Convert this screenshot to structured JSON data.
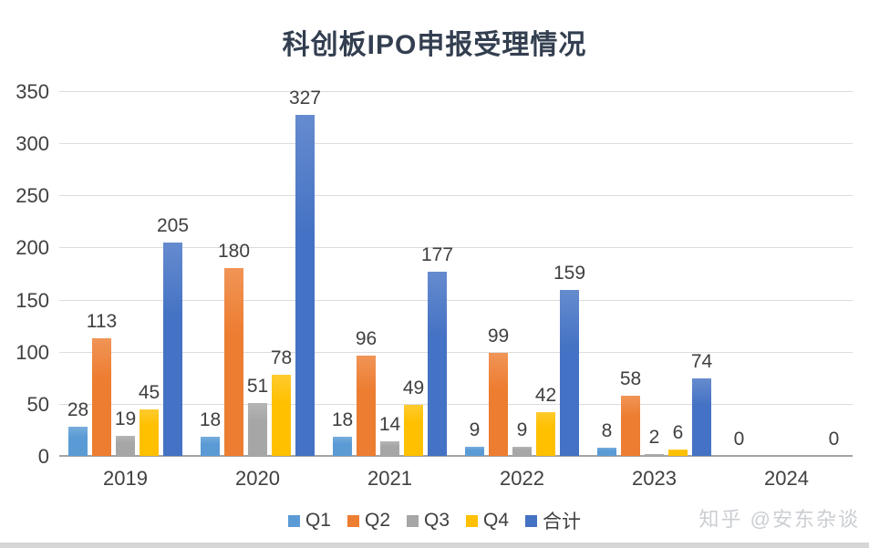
{
  "chart_data": {
    "type": "bar",
    "title": "科创板IPO申报受理情况",
    "categories": [
      "2019",
      "2020",
      "2021",
      "2022",
      "2023",
      "2024"
    ],
    "series": [
      {
        "name": "Q1",
        "color": "#5B9BD5",
        "values": [
          28,
          18,
          18,
          9,
          8,
          0
        ]
      },
      {
        "name": "Q2",
        "color": "#ED7D31",
        "values": [
          113,
          180,
          96,
          99,
          58,
          null
        ]
      },
      {
        "name": "Q3",
        "color": "#A6A6A6",
        "values": [
          19,
          51,
          14,
          9,
          2,
          null
        ]
      },
      {
        "name": "Q4",
        "color": "#FFC000",
        "values": [
          45,
          78,
          49,
          42,
          6,
          null
        ]
      },
      {
        "name": "合计",
        "color": "#4472C4",
        "values": [
          205,
          327,
          177,
          159,
          74,
          0
        ]
      }
    ],
    "xlabel": "",
    "ylabel": "",
    "ylim": [
      0,
      350
    ],
    "y_ticks": [
      0,
      50,
      100,
      150,
      200,
      250,
      300,
      350
    ],
    "grid": "horizontal",
    "legend_position": "bottom"
  },
  "watermark": {
    "text": "知乎 @安东杂谈"
  }
}
